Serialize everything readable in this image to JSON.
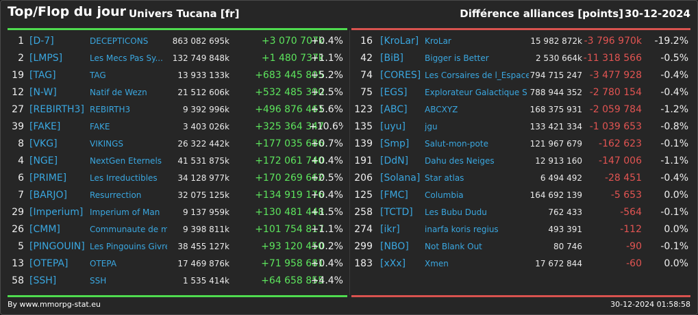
{
  "header": {
    "title": "Top/Flop du jour",
    "universe": "Univers Tucana [fr]",
    "subject": "Différence alliances [points]",
    "date": "30-12-2024"
  },
  "colors": {
    "top_accent": "#4fdb4f",
    "flop_accent": "#d9534f",
    "tag_blue": "#3aa7e0",
    "background": "#262626"
  },
  "top_table": {
    "rows": [
      {
        "rank": "1",
        "tag": "[D-7]",
        "name": "DECEPTICONS",
        "points": "863 082 695k",
        "diff": "+3 070 707k",
        "pct": "+0.4%"
      },
      {
        "rank": "2",
        "tag": "[LMPS]",
        "name": "Les Mecs Pas Sy...",
        "points": "132 749 848k",
        "diff": "+1 480 737k",
        "pct": "+1.1%"
      },
      {
        "rank": "19",
        "tag": "[TAG]",
        "name": "TAG",
        "points": "13 933 133k",
        "diff": "+683 445 805",
        "pct": "+5.2%"
      },
      {
        "rank": "12",
        "tag": "[N-W]",
        "name": "Natif de Wezn",
        "points": "21 512 606k",
        "diff": "+532 485 390",
        "pct": "+2.5%"
      },
      {
        "rank": "27",
        "tag": "[REBIRTH3]",
        "name": "REBIRTH3",
        "points": "9 392 996k",
        "diff": "+496 876 461",
        "pct": "+5.6%"
      },
      {
        "rank": "39",
        "tag": "[FAKE]",
        "name": "FAKE",
        "points": "3 403 026k",
        "diff": "+325 364 347",
        "pct": "+10.6%"
      },
      {
        "rank": "8",
        "tag": "[VKG]",
        "name": "VIKINGS",
        "points": "26 322 442k",
        "diff": "+177 035 686",
        "pct": "+0.7%"
      },
      {
        "rank": "4",
        "tag": "[NGE]",
        "name": "NextGen Eternels",
        "points": "41 531 875k",
        "diff": "+172 061 740",
        "pct": "+0.4%"
      },
      {
        "rank": "6",
        "tag": "[PRIME]",
        "name": "Les Irreductibles",
        "points": "34 128 977k",
        "diff": "+170 269 662",
        "pct": "+0.5%"
      },
      {
        "rank": "7",
        "tag": "[BARJO]",
        "name": "Resurrection",
        "points": "32 075 125k",
        "diff": "+134 919 176",
        "pct": "+0.4%"
      },
      {
        "rank": "29",
        "tag": "[Imperium]",
        "name": "Imperium of Man",
        "points": "9 137 959k",
        "diff": "+130 481 448",
        "pct": "+1.5%"
      },
      {
        "rank": "26",
        "tag": "[CMM]",
        "name": "Communaute de m...",
        "points": "9 398 811k",
        "diff": "+101 754 817",
        "pct": "+1.1%"
      },
      {
        "rank": "5",
        "tag": "[PINGOUIN]",
        "name": "Les Pingouins Givre...",
        "points": "38 455 127k",
        "diff": "+93 120 450",
        "pct": "+0.2%"
      },
      {
        "rank": "13",
        "tag": "[OTEPA]",
        "name": "OTEPA",
        "points": "17 469 876k",
        "diff": "+71 958 681",
        "pct": "+0.4%"
      },
      {
        "rank": "58",
        "tag": "[SSH]",
        "name": "SSH",
        "points": "1 535 414k",
        "diff": "+64 658 855",
        "pct": "+4.4%"
      }
    ]
  },
  "flop_table": {
    "rows": [
      {
        "rank": "16",
        "tag": "[KroLar]",
        "name": "KroLar",
        "points": "15 982 872k",
        "diff": "-3 796 970k",
        "pct": "-19.2%"
      },
      {
        "rank": "42",
        "tag": "[BiB]",
        "name": "Bigger is Better",
        "points": "2 530 664k",
        "diff": "-11 318 566",
        "pct": "-0.5%"
      },
      {
        "rank": "74",
        "tag": "[CORES]",
        "name": "Les Corsaires de l_Espace",
        "points": "794 715 247",
        "diff": "-3 477 928",
        "pct": "-0.4%"
      },
      {
        "rank": "75",
        "tag": "[EGS]",
        "name": "Explorateur Galactique S",
        "points": "788 944 352",
        "diff": "-2 780 154",
        "pct": "-0.4%"
      },
      {
        "rank": "123",
        "tag": "[ABC]",
        "name": "ABCXYZ",
        "points": "168 375 931",
        "diff": "-2 059 784",
        "pct": "-1.2%"
      },
      {
        "rank": "135",
        "tag": "[uyu]",
        "name": "jgu",
        "points": "133 421 334",
        "diff": "-1 039 653",
        "pct": "-0.8%"
      },
      {
        "rank": "139",
        "tag": "[Smp]",
        "name": "Salut-mon-pote",
        "points": "121 967 679",
        "diff": "-162 623",
        "pct": "-0.1%"
      },
      {
        "rank": "191",
        "tag": "[DdN]",
        "name": "Dahu des Neiges",
        "points": "12 913 160",
        "diff": "-147 006",
        "pct": "-1.1%"
      },
      {
        "rank": "206",
        "tag": "[Solana]",
        "name": "Star atlas",
        "points": "6 494 492",
        "diff": "-28 451",
        "pct": "-0.4%"
      },
      {
        "rank": "125",
        "tag": "[FMC]",
        "name": "Columbia",
        "points": "164 692 139",
        "diff": "-5 653",
        "pct": "0.0%"
      },
      {
        "rank": "258",
        "tag": "[TCTD]",
        "name": "Les Bubu Dudu",
        "points": "762 433",
        "diff": "-564",
        "pct": "-0.1%"
      },
      {
        "rank": "274",
        "tag": "[ikr]",
        "name": "inarfa koris regius",
        "points": "493 391",
        "diff": "-112",
        "pct": "0.0%"
      },
      {
        "rank": "299",
        "tag": "[NBO]",
        "name": "Not Blank Out",
        "points": "80 746",
        "diff": "-90",
        "pct": "-0.1%"
      },
      {
        "rank": "183",
        "tag": "[xXx]",
        "name": "Xmen",
        "points": "17 672 844",
        "diff": "-60",
        "pct": "0.0%"
      }
    ]
  },
  "footer": {
    "credit": "By www.mmorpg-stat.eu",
    "timestamp": "30-12-2024 01:58:58"
  }
}
